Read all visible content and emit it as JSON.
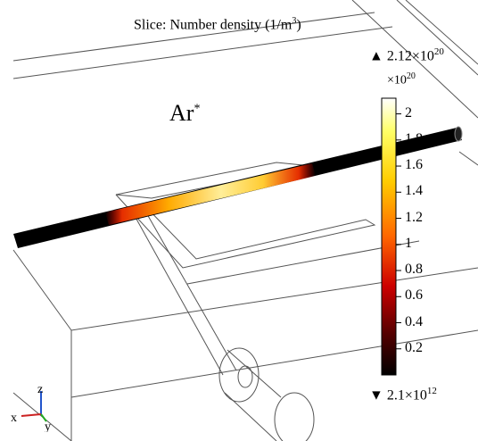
{
  "title": {
    "prefix": "Slice: Number density (1/m",
    "exp": "3",
    "suffix": ")"
  },
  "species": {
    "base": "Ar",
    "sup": "*"
  },
  "colorbar": {
    "max": {
      "marker": "▲",
      "mant": "2.12×10",
      "exp": "20"
    },
    "multiplier": {
      "base": "×10",
      "exp": "20"
    },
    "min": {
      "marker": "▼",
      "mant": "2.1×10",
      "exp": "12"
    },
    "ticks": [
      "2",
      "1.8",
      "1.6",
      "1.4",
      "1.2",
      "1",
      "0.8",
      "0.6",
      "0.4",
      "0.2"
    ],
    "tick_values": [
      2.0,
      1.8,
      1.6,
      1.4,
      1.2,
      1.0,
      0.8,
      0.6,
      0.4,
      0.2
    ],
    "range": [
      0.0,
      2.12
    ],
    "colormap": [
      "#ffffff",
      "#ffff66",
      "#ffcc00",
      "#ff6600",
      "#cc0000",
      "#550000",
      "#000000"
    ]
  },
  "axes": {
    "x": "x",
    "y": "y",
    "z": "z"
  }
}
